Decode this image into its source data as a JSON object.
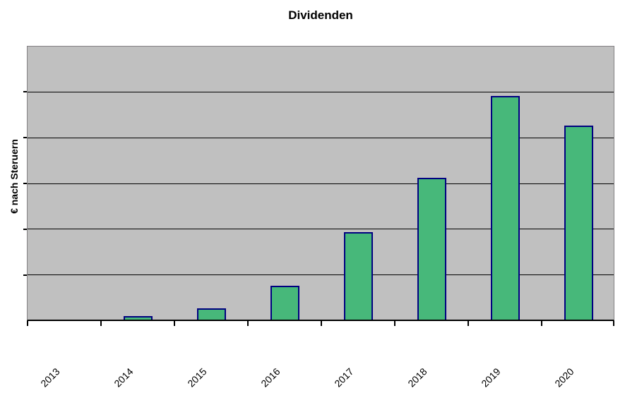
{
  "page": {
    "background": "#ffffff"
  },
  "chart_data": {
    "type": "bar",
    "title": "Dividenden",
    "xlabel": "",
    "ylabel": "€ nach Steruern",
    "categories": [
      "2013",
      "2014",
      "2015",
      "2016",
      "2017",
      "2018",
      "2019",
      "2020"
    ],
    "values": [
      0,
      0.08,
      0.25,
      0.75,
      1.92,
      3.11,
      4.91,
      4.26
    ],
    "value_note": "y axis has no visible tick labels; values estimated in gridline intervals",
    "ylim": [
      0,
      6
    ],
    "y_divisions": 6,
    "grid": "horizontal",
    "legend": "none",
    "x_tick_rotation_deg": 45,
    "colors": {
      "plot_background": "#c0c0c0",
      "bar_fill": "#47b87a",
      "bar_border": "#000080",
      "gridline": "#000000",
      "plot_border": "#848284",
      "axis_line": "#000000",
      "text": "#000000"
    }
  }
}
